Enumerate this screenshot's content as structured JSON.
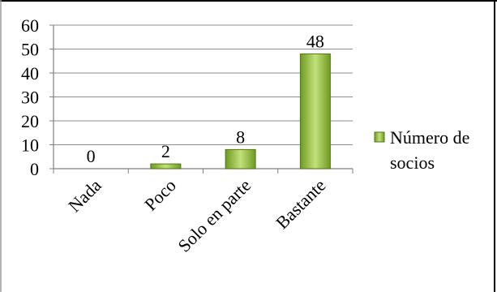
{
  "chart_data": {
    "type": "bar",
    "categories": [
      "Nada",
      "Poco",
      "Solo en parte",
      "Bastante"
    ],
    "series": [
      {
        "name": "Número de socios",
        "values": [
          0,
          2,
          8,
          48
        ]
      }
    ],
    "data_labels": [
      "0",
      "2",
      "8",
      "48"
    ],
    "y_ticks": [
      "0",
      "10",
      "20",
      "30",
      "40",
      "50",
      "60"
    ],
    "ylim": [
      0,
      60
    ],
    "grid": true,
    "legend": {
      "placement": "right",
      "lines": [
        "Número de",
        "socios"
      ]
    },
    "colors": {
      "bar_fill_light": "#c2e07a",
      "bar_fill_dark": "#6f9a22",
      "bar_stroke": "#4f7a14",
      "gridline": "#8c8c8c",
      "axis": "#7f7f7f",
      "frame_dark": "#000000",
      "frame_light": "#9a9a9a"
    }
  }
}
